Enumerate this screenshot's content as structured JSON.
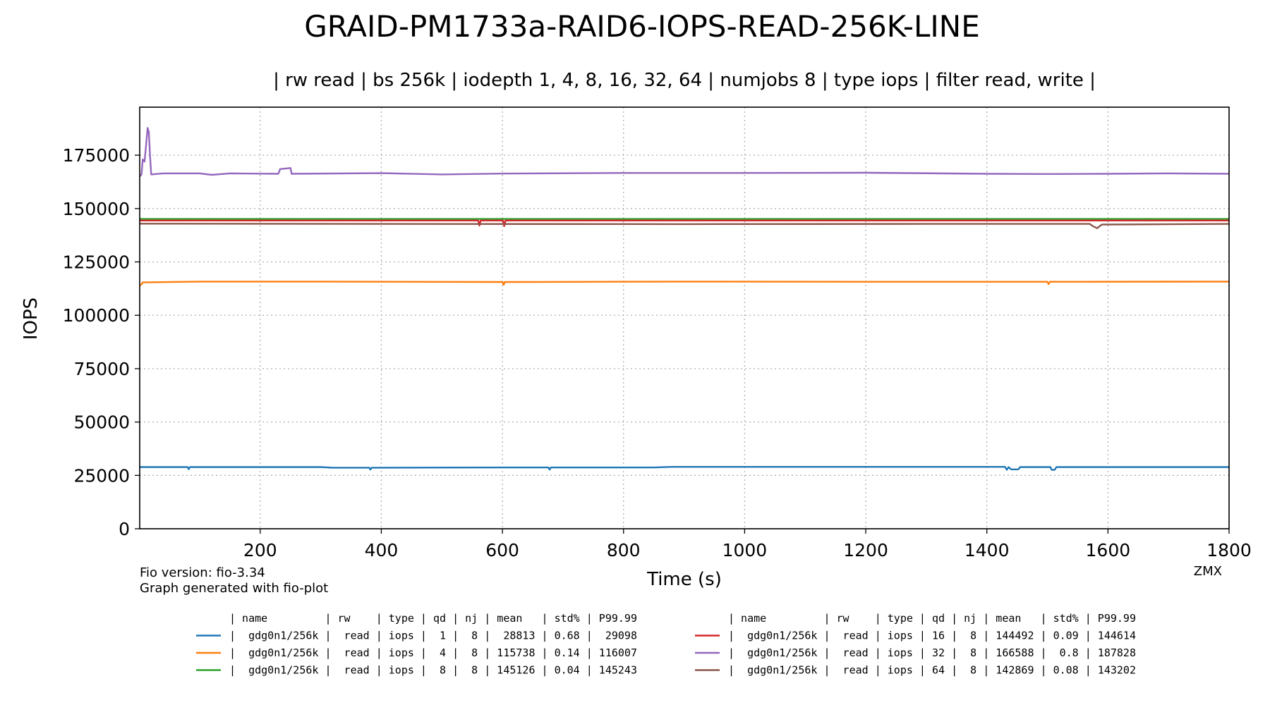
{
  "chart_data": {
    "type": "line",
    "title": "GRAID-PM1733a-RAID6-IOPS-READ-256K-LINE",
    "subtitle": "| rw read | bs 256k | iodepth 1, 4, 8, 16, 32, 64 | numjobs 8 | type iops | filter read, write |",
    "xlabel": "Time (s)",
    "ylabel": "IOPS",
    "xlim": [
      1,
      1800
    ],
    "ylim": [
      0,
      197500
    ],
    "xticks": [
      200,
      400,
      600,
      800,
      1000,
      1200,
      1400,
      1600,
      1800
    ],
    "yticks": [
      0,
      25000,
      50000,
      75000,
      100000,
      125000,
      150000,
      175000
    ],
    "grid": true,
    "series": [
      {
        "name": "qd 1",
        "color": "#1f77b4",
        "points": [
          [
            1,
            28900
          ],
          [
            80,
            28900
          ],
          [
            82,
            27900
          ],
          [
            84,
            28900
          ],
          [
            300,
            28900
          ],
          [
            320,
            28600
          ],
          [
            380,
            28600
          ],
          [
            382,
            27700
          ],
          [
            384,
            28600
          ],
          [
            600,
            28700
          ],
          [
            676,
            28700
          ],
          [
            678,
            27700
          ],
          [
            680,
            28700
          ],
          [
            850,
            28700
          ],
          [
            880,
            29000
          ],
          [
            1430,
            29000
          ],
          [
            1433,
            27600
          ],
          [
            1436,
            28900
          ],
          [
            1440,
            27800
          ],
          [
            1452,
            27800
          ],
          [
            1455,
            28900
          ],
          [
            1505,
            28900
          ],
          [
            1507,
            27600
          ],
          [
            1512,
            27600
          ],
          [
            1515,
            28900
          ],
          [
            1800,
            28900
          ]
        ]
      },
      {
        "name": "qd 4",
        "color": "#ff7f0e",
        "points": [
          [
            1,
            114000
          ],
          [
            4,
            114500
          ],
          [
            6,
            115400
          ],
          [
            100,
            115800
          ],
          [
            300,
            115800
          ],
          [
            600,
            115600
          ],
          [
            602,
            114300
          ],
          [
            604,
            115600
          ],
          [
            900,
            115800
          ],
          [
            1200,
            115700
          ],
          [
            1500,
            115700
          ],
          [
            1502,
            114600
          ],
          [
            1504,
            115700
          ],
          [
            1800,
            115800
          ]
        ]
      },
      {
        "name": "qd 8",
        "color": "#2ca02c",
        "points": [
          [
            1,
            145126
          ],
          [
            1800,
            145126
          ]
        ]
      },
      {
        "name": "qd 16",
        "color": "#d62728",
        "points": [
          [
            1,
            144400
          ],
          [
            560,
            144400
          ],
          [
            562,
            142000
          ],
          [
            564,
            144400
          ],
          [
            601,
            144400
          ],
          [
            603,
            141800
          ],
          [
            605,
            144400
          ],
          [
            1800,
            144400
          ]
        ]
      },
      {
        "name": "qd 32",
        "color": "#9467bd",
        "points": [
          [
            1,
            165000
          ],
          [
            4,
            166000
          ],
          [
            6,
            173000
          ],
          [
            9,
            172000
          ],
          [
            12,
            181000
          ],
          [
            14,
            187800
          ],
          [
            16,
            186000
          ],
          [
            18,
            175000
          ],
          [
            20,
            166000
          ],
          [
            40,
            166500
          ],
          [
            100,
            166500
          ],
          [
            120,
            165800
          ],
          [
            150,
            166500
          ],
          [
            230,
            166300
          ],
          [
            233,
            168500
          ],
          [
            250,
            169000
          ],
          [
            252,
            166300
          ],
          [
            400,
            166600
          ],
          [
            500,
            166000
          ],
          [
            600,
            166400
          ],
          [
            800,
            166700
          ],
          [
            1000,
            166700
          ],
          [
            1200,
            166800
          ],
          [
            1400,
            166300
          ],
          [
            1500,
            166200
          ],
          [
            1600,
            166300
          ],
          [
            1700,
            166500
          ],
          [
            1800,
            166300
          ]
        ]
      },
      {
        "name": "qd 64",
        "color": "#8c564b",
        "points": [
          [
            1,
            142900
          ],
          [
            900,
            142700
          ],
          [
            1300,
            142800
          ],
          [
            1570,
            142800
          ],
          [
            1575,
            141800
          ],
          [
            1582,
            140800
          ],
          [
            1590,
            142500
          ],
          [
            1800,
            142800
          ]
        ]
      }
    ],
    "legend": {
      "placement": "bottom",
      "header": "| name         | rw    | type | qd | nj | mean   | std% | P99.99",
      "rows": [
        "|  gdg0n1/256k |  read | iops |  1 |  8 |  28813 | 0.68 |  29098",
        "|  gdg0n1/256k |  read | iops |  4 |  8 | 115738 | 0.14 | 116007",
        "|  gdg0n1/256k |  read | iops |  8 |  8 | 145126 | 0.04 | 145243",
        "|  gdg0n1/256k |  read | iops | 16 |  8 | 144492 | 0.09 | 144614",
        "|  gdg0n1/256k |  read | iops | 32 |  8 | 166588 |  0.8 | 187828",
        "|  gdg0n1/256k |  read | iops | 64 |  8 | 142869 | 0.08 | 143202"
      ]
    },
    "footnote": {
      "line1": "Fio version: fio-3.34",
      "line2": "Graph generated with fio-plot",
      "corner": "ZMX"
    }
  }
}
